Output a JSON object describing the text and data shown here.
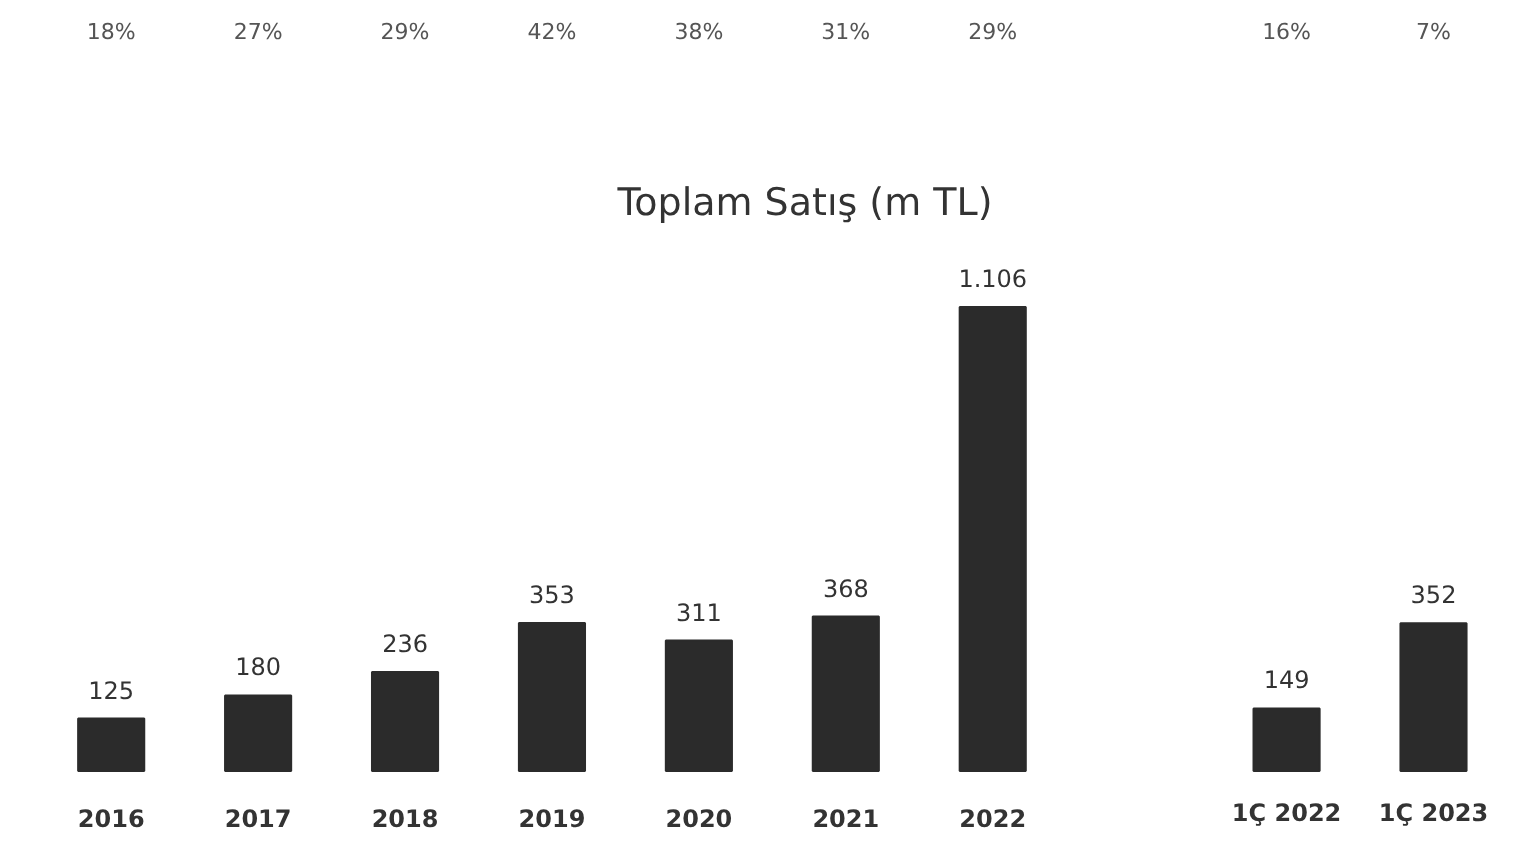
{
  "chart_data": {
    "type": "bar",
    "title": "Toplam Satış (m TL)",
    "categories": [
      "2016",
      "2017",
      "2018",
      "2019",
      "2020",
      "2021",
      "2022",
      null,
      "1Ç 2022",
      "1Ç 2023"
    ],
    "values": [
      125,
      180,
      236,
      353,
      311,
      368,
      1106,
      null,
      149,
      352
    ],
    "value_labels": [
      "125",
      "180",
      "236",
      "353",
      "311",
      "368",
      "1.106",
      null,
      "149",
      "352"
    ],
    "color": "#2b2b2b",
    "grid": false,
    "annotations": [
      "18%",
      "27%",
      "29%",
      "42%",
      "38%",
      "31%",
      "29%",
      "16%",
      "7%"
    ]
  }
}
